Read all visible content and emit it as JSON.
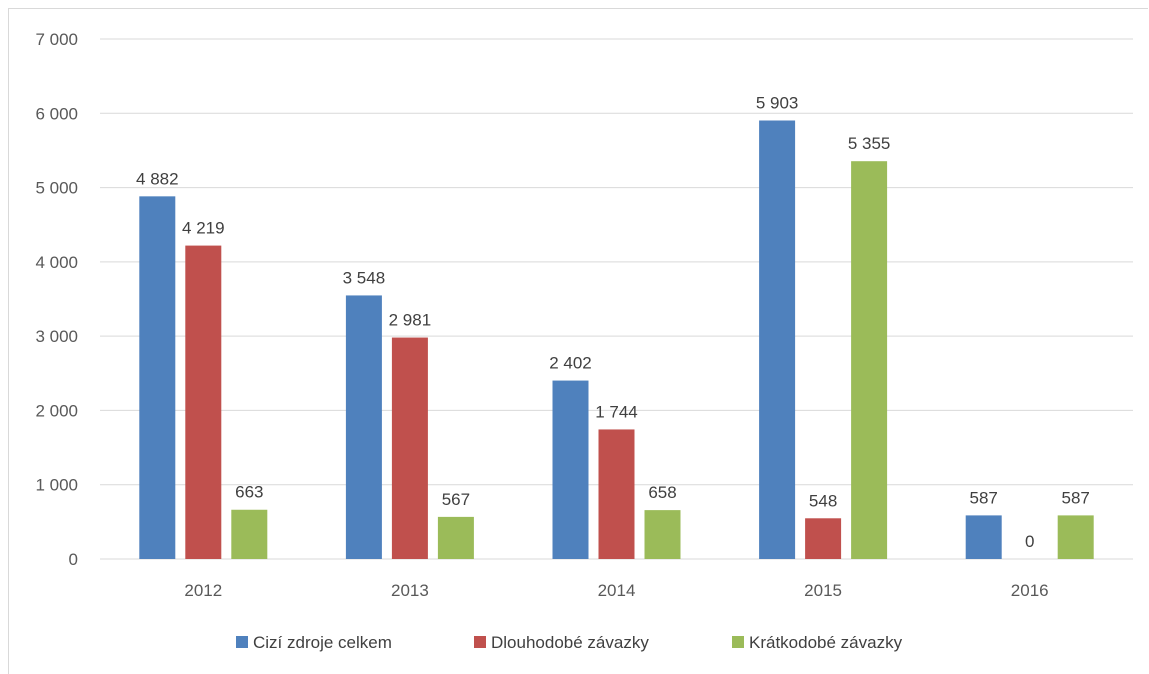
{
  "chart_data": {
    "type": "bar",
    "categories": [
      "2012",
      "2013",
      "2014",
      "2015",
      "2016"
    ],
    "series": [
      {
        "name": "Cizí zdroje celkem",
        "color": "#4f81bd",
        "values": [
          4882,
          3548,
          2402,
          5903,
          587
        ],
        "labels": [
          "4 882",
          "3 548",
          "2 402",
          "5 903",
          "587"
        ]
      },
      {
        "name": "Dlouhodobé závazky",
        "color": "#c0504d",
        "values": [
          4219,
          2981,
          1744,
          548,
          0
        ],
        "labels": [
          "4 219",
          "2 981",
          "1 744",
          "548",
          "0"
        ]
      },
      {
        "name": "Krátkodobé závazky",
        "color": "#9bbb59",
        "values": [
          663,
          567,
          658,
          5355,
          587
        ],
        "labels": [
          "663",
          "567",
          "658",
          "5 355",
          "587"
        ]
      }
    ],
    "ylim": [
      0,
      7000
    ],
    "yticks": [
      0,
      1000,
      2000,
      3000,
      4000,
      5000,
      6000,
      7000
    ],
    "ytick_labels": [
      "0",
      "1 000",
      "2 000",
      "3 000",
      "4 000",
      "5 000",
      "6 000",
      "7 000"
    ],
    "grid": true,
    "legend": "bottom",
    "gridline_color": "#d9d9d9"
  }
}
